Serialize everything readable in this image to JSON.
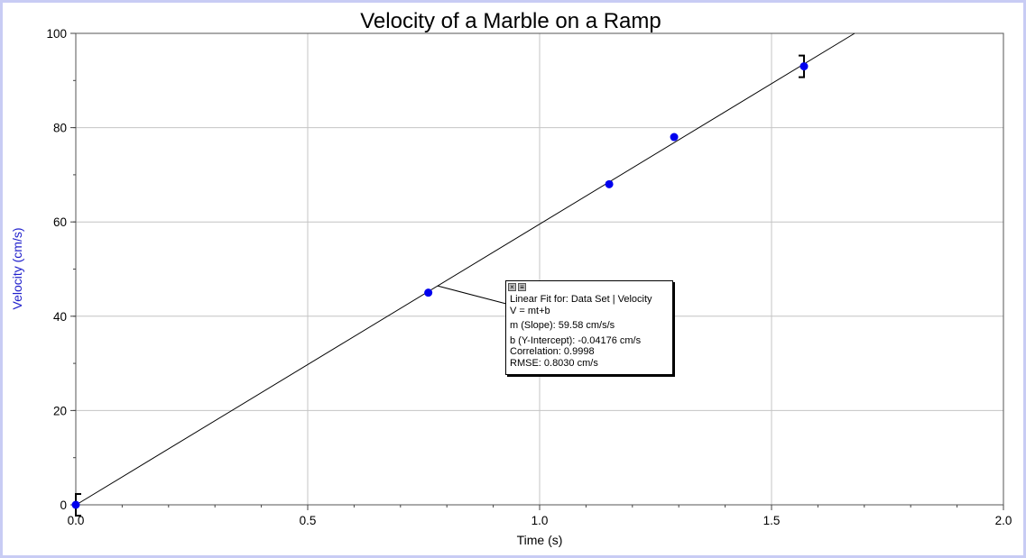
{
  "chart_data": {
    "type": "scatter",
    "title": "Velocity of a Marble on a Ramp",
    "xlabel": "Time (s)",
    "ylabel": "Velocity (cm/s)",
    "xlim": [
      0.0,
      2.0
    ],
    "ylim": [
      0,
      100
    ],
    "x_ticks": [
      "0.0",
      "0.5",
      "1.0",
      "1.5",
      "2.0"
    ],
    "y_ticks": [
      "0",
      "20",
      "40",
      "60",
      "80",
      "100"
    ],
    "grid": true,
    "points": [
      {
        "x": 0.0,
        "y": 0
      },
      {
        "x": 0.76,
        "y": 45
      },
      {
        "x": 1.15,
        "y": 68
      },
      {
        "x": 1.29,
        "y": 78
      },
      {
        "x": 1.57,
        "y": 93
      }
    ],
    "fit": {
      "type": "linear",
      "slope": 59.58,
      "intercept": -0.04176
    },
    "colors": {
      "points": "#0000ee",
      "ylabel": "#2020cc",
      "fit_line": "#000000",
      "frame": "#c8ccf4"
    }
  },
  "fit_box": {
    "close_icon": "×",
    "menu_icon": "≡",
    "line1": "Linear Fit for: Data Set | Velocity",
    "line2": "V = mt+b",
    "line3": "m (Slope): 59.58 cm/s/s",
    "line4": "b (Y-Intercept): -0.04176 cm/s",
    "line5": "Correlation: 0.9998",
    "line6": "RMSE: 0.8030 cm/s"
  }
}
